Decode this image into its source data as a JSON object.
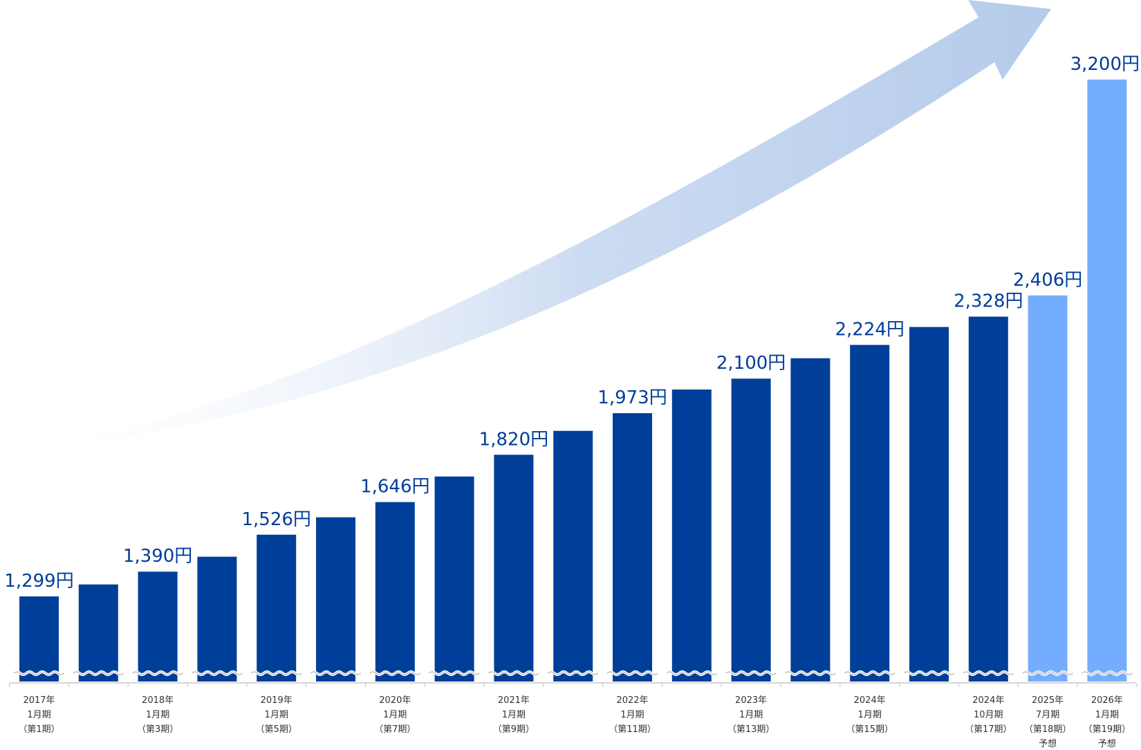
{
  "colors": {
    "actual_bar": "#003f99",
    "forecast_bar": "#74adfd",
    "value_text": "#003d99",
    "arrow": "#b4cbea",
    "axis": "#c8c8c8",
    "tick_text": "#333333"
  },
  "chart_data": {
    "type": "bar",
    "title": "",
    "xlabel": "",
    "ylabel": "",
    "ylim": [
      1050,
      3300
    ],
    "axis_break": true,
    "legend": "none",
    "trend_arrow": true,
    "values": [
      1299,
      1343,
      1390,
      1445,
      1526,
      1590,
      1646,
      1740,
      1820,
      1908,
      1973,
      2060,
      2100,
      2175,
      2224,
      2290,
      2328,
      2406,
      3200
    ],
    "forecast": [
      false,
      false,
      false,
      false,
      false,
      false,
      false,
      false,
      false,
      false,
      false,
      false,
      false,
      false,
      false,
      false,
      false,
      true,
      true
    ],
    "value_labels": [
      "1,299円",
      "",
      "1,390円",
      "",
      "1,526円",
      "",
      "1,646円",
      "",
      "1,820円",
      "",
      "1,973円",
      "",
      "2,100円",
      "",
      "2,224円",
      "",
      "2,328円",
      "2,406円",
      "3,200円"
    ],
    "tick_labels": [
      [
        "2017年",
        "1月期",
        "（第1期）"
      ],
      [],
      [
        "2018年",
        "1月期",
        "（第3期）"
      ],
      [],
      [
        "2019年",
        "1月期",
        "（第5期）"
      ],
      [],
      [
        "2020年",
        "1月期",
        "（第7期）"
      ],
      [],
      [
        "2021年",
        "1月期",
        "（第9期）"
      ],
      [],
      [
        "2022年",
        "1月期",
        "（第11期）"
      ],
      [],
      [
        "2023年",
        "1月期",
        "（第13期）"
      ],
      [],
      [
        "2024年",
        "1月期",
        "（第15期）"
      ],
      [],
      [
        "2024年",
        "10月期",
        "（第17期）"
      ],
      [
        "2025年",
        "7月期",
        "（第18期）",
        "予想"
      ],
      [
        "2026年",
        "1月期",
        "（第19期）",
        "予想"
      ]
    ]
  }
}
